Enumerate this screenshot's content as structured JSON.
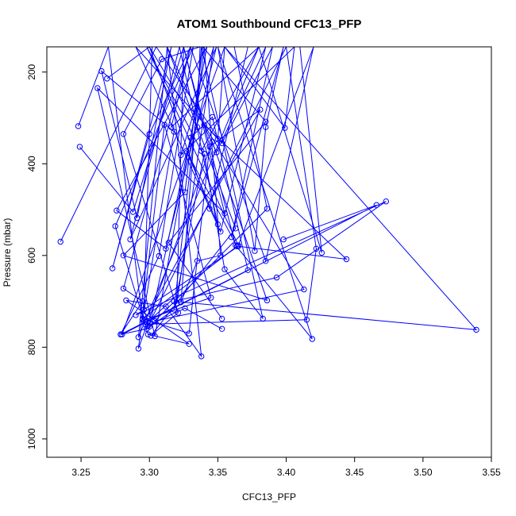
{
  "chart_data": {
    "type": "line",
    "title": "ATOM1 Southbound CFC13_PFP",
    "xlabel": "CFC13_PFP",
    "ylabel": "Pressure (mbar)",
    "xlim": [
      3.225,
      3.55
    ],
    "ylim": [
      1040,
      145
    ],
    "y_reversed": true,
    "x_ticks": [
      "3.25",
      "3.30",
      "3.35",
      "3.40",
      "3.45",
      "3.50",
      "3.55"
    ],
    "y_ticks": [
      "200",
      "400",
      "600",
      "800",
      "1000"
    ],
    "grid": false,
    "legend": "none",
    "markers": "open-circle",
    "line_color": "#0000ff",
    "series": [
      {
        "x": [
          3.235,
          3.305,
          3.353,
          3.39,
          3.36,
          3.398,
          3.385,
          3.377,
          3.35,
          3.302,
          3.296,
          3.3,
          3.33,
          3.346,
          3.372,
          3.279,
          3.298,
          3.318,
          3.34,
          3.355,
          3.383,
          3.338,
          3.323,
          3.335,
          3.352,
          3.34,
          3.319,
          3.297,
          3.415,
          3.422,
          3.4,
          3.299,
          3.326,
          3.353
        ],
        "y": [
          570,
          145,
          355,
          145,
          560,
          145,
          320,
          590,
          145,
          145,
          718,
          755,
          343,
          298,
          632,
          772,
          760,
          718,
          378,
          630,
          738,
          145,
          702,
          612,
          600,
          145,
          690,
          750,
          740,
          585,
          145,
          753,
          715,
          760
        ]
      },
      {
        "x": [
          3.248,
          3.27,
          3.295,
          3.318,
          3.265,
          3.291,
          3.316,
          3.273,
          3.3,
          3.33,
          3.281,
          3.295,
          3.279,
          3.307,
          3.332,
          3.275,
          3.299,
          3.329,
          3.283,
          3.312,
          3.338,
          3.313,
          3.363,
          3.301,
          3.321,
          3.281,
          3.309,
          3.337,
          3.335,
          3.3
        ],
        "y": [
          318,
          145,
          740,
          330,
          198,
          518,
          145,
          628,
          335,
          145,
          672,
          700,
          772,
          601,
          145,
          536,
          772,
          793,
          698,
          711,
          820,
          145,
          541,
          775,
          725,
          335,
          172,
          145,
          320,
          145
        ]
      },
      {
        "x": [
          3.249,
          3.288,
          3.325,
          3.355,
          3.262,
          3.304,
          3.342,
          3.276,
          3.312,
          3.349,
          3.286,
          3.322,
          3.35,
          3.327,
          3.364,
          3.295,
          3.329,
          3.344,
          3.381,
          3.297,
          3.345,
          3.311,
          3.292,
          3.346,
          3.386,
          3.281,
          3.326,
          3.339,
          3.385,
          3.314,
          3.353
        ],
        "y": [
          363,
          505,
          145,
          508,
          235,
          776,
          145,
          502,
          585,
          145,
          565,
          145,
          532,
          372,
          580,
          738,
          770,
          363,
          282,
          740,
          692,
          315,
          803,
          352,
          698,
          600,
          462,
          145,
          308,
          572,
          738
        ]
      },
      {
        "x": [
          3.269,
          3.3,
          3.344,
          3.372,
          3.41,
          3.426,
          3.38,
          3.316,
          3.33,
          3.385,
          3.42,
          3.365,
          3.298,
          3.338,
          3.38,
          3.292,
          3.313,
          3.349,
          3.385,
          3.352,
          3.29,
          3.35,
          3.355,
          3.399,
          3.406,
          3.323,
          3.347,
          3.32,
          3.325,
          3.363,
          3.419,
          3.35,
          3.288,
          3.302,
          3.33,
          3.37,
          3.41,
          3.445,
          3.323,
          3.313,
          3.386,
          3.447,
          3.32
        ],
        "y": [
          214,
          145,
          498,
          145,
          145,
          594,
          145,
          320,
          145,
          612,
          145,
          578,
          145,
          372,
          145,
          778,
          145,
          375,
          145,
          548,
          145,
          346,
          145,
          322,
          145,
          381,
          145,
          705,
          145,
          578,
          782,
          145,
          145,
          145,
          145,
          145,
          145,
          145,
          145,
          145,
          145,
          145,
          145
        ]
      },
      {
        "x": [
          3.398,
          3.466,
          3.28,
          3.355,
          3.539,
          3.318,
          3.393,
          3.473,
          3.29,
          3.365,
          3.444,
          3.34,
          3.413,
          3.304,
          3.386,
          3.362,
          3.415
        ],
        "y": [
          565,
          490,
          772,
          145,
          762,
          700,
          648,
          482,
          730,
          580,
          608,
          315,
          674,
          743,
          498,
          145,
          145
        ]
      }
    ]
  }
}
